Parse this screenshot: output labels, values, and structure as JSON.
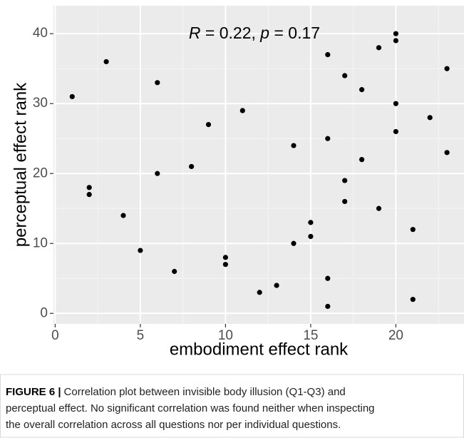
{
  "chart_data": {
    "type": "scatter",
    "annotation": [
      "R",
      " = 0.22, ",
      "p",
      " = 0.17"
    ],
    "x_label": "embodiment effect rank",
    "y_label": "perceptual effect rank",
    "x": [
      1,
      2,
      2,
      3,
      4,
      5,
      6,
      6,
      7,
      8,
      9,
      10,
      10,
      11,
      12,
      13,
      14,
      14,
      15,
      15,
      16,
      16,
      16,
      16,
      17,
      17,
      17,
      18,
      18,
      19,
      19,
      20,
      20,
      20,
      20,
      21,
      21,
      22,
      23,
      23
    ],
    "values": [
      31,
      18,
      17,
      36,
      14,
      9,
      33,
      20,
      6,
      21,
      27,
      8,
      7,
      29,
      3,
      4,
      24,
      10,
      13,
      11,
      37,
      25,
      5,
      1,
      34,
      19,
      16,
      32,
      22,
      38,
      15,
      40,
      39,
      30,
      26,
      12,
      2,
      28,
      35,
      23
    ],
    "color": "#000000",
    "xlim": [
      -0.1,
      24.0
    ],
    "xticks": [
      0,
      5,
      10,
      15,
      20
    ],
    "ylim": [
      -1.5,
      44
    ],
    "yticks": [
      0,
      10,
      20,
      30,
      40
    ],
    "grid": true,
    "caption_label": "FIGURE 6 |",
    "caption": [
      "Correlation plot between invisible body illusion (Q1-Q3) and",
      "perceptual effect. No significant correlation was found neither when inspecting",
      "the overall correlation across all questions nor per individual questions."
    ]
  }
}
